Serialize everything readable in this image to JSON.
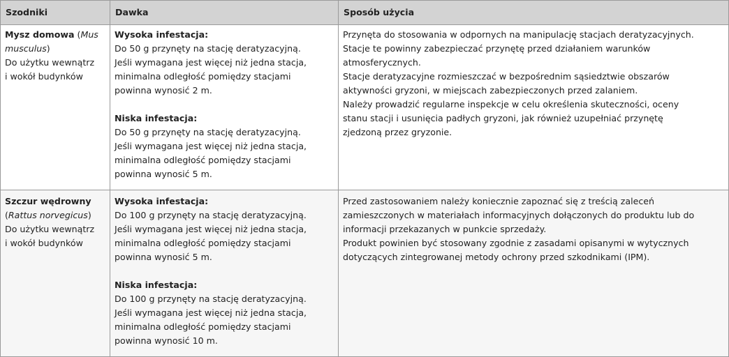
{
  "headers": [
    "Szodniki",
    "Dawka",
    "Sposób użycia"
  ],
  "rows": [
    {
      "pest_name": "Mysz domowa",
      "latin_open": " (",
      "latin_part1": "Mus",
      "latin_part2": "musculus",
      "latin_close": ")",
      "use_line1": "Do użytku wewnątrz",
      "use_line2": "i wokół budynków",
      "doses": [
        {
          "title": "Wysoka infestacja:",
          "lines": [
            "Do 50 g przynęty na stację deratyzacyjną.",
            "Jeśli wymagana jest więcej niż jedna stacja,",
            "minimalna odległość pomiędzy stacjami",
            "powinna wynosić 2 m."
          ]
        },
        {
          "title": "Niska infestacja:",
          "lines": [
            "Do 50 g przynęty na stację deratyzacyjną.",
            "Jeśli wymagana jest więcej niż jedna stacja,",
            "minimalna odległość pomiędzy stacjami",
            "powinna wynosić 5 m."
          ]
        }
      ],
      "usage_lines": [
        "Przynęta do stosowania w odpornych na manipulację stacjach deratyzacyjnych.",
        "Stacje te powinny zabezpieczać przynętę przed działaniem warunków",
        "atmosferycznych.",
        "Stacje deratyzacyjne rozmieszczać w bezpośrednim sąsiedztwie obszarów",
        "aktywności gryzoni, w miejscach zabezpieczonych przed zalaniem.",
        "Należy prowadzić regularne inspekcje w celu określenia skuteczności, oceny",
        "stanu stacji i usunięcia padłych gryzoni, jak również uzupełniać przynętę",
        "zjedzoną przez gryzonie."
      ]
    },
    {
      "pest_name": "Szczur wędrowny",
      "latin_open": "(",
      "latin_part1": "Rattus norvegicus",
      "latin_close": ")",
      "use_line1": "Do użytku wewnątrz",
      "use_line2": "i wokół budynków",
      "doses": [
        {
          "title": "Wysoka infestacja:",
          "lines": [
            "Do 100 g przynęty na stację deratyzacyjną.",
            "Jeśli wymagana jest więcej niż jedna stacja,",
            "minimalna odległość pomiędzy stacjami",
            "powinna wynosić 5 m."
          ]
        },
        {
          "title": "Niska infestacja:",
          "lines": [
            "Do 100 g przynęty na stację deratyzacyjną.",
            "Jeśli wymagana jest więcej niż jedna stacja,",
            "minimalna odległość pomiędzy stacjami",
            "powinna wynosić 10 m."
          ]
        }
      ],
      "usage_lines": [
        "Przed zastosowaniem należy koniecznie zapoznać się z treścią zaleceń",
        "zamieszczonych w materiałach informacyjnych dołączonych do produktu lub do",
        "informacji przekazanych w punkcie sprzedaży.",
        "Produkt powinien być stosowany zgodnie z zasadami opisanymi w wytycznych",
        "dotyczących zintegrowanej metody ochrony przed szkodnikami (IPM)."
      ]
    }
  ]
}
